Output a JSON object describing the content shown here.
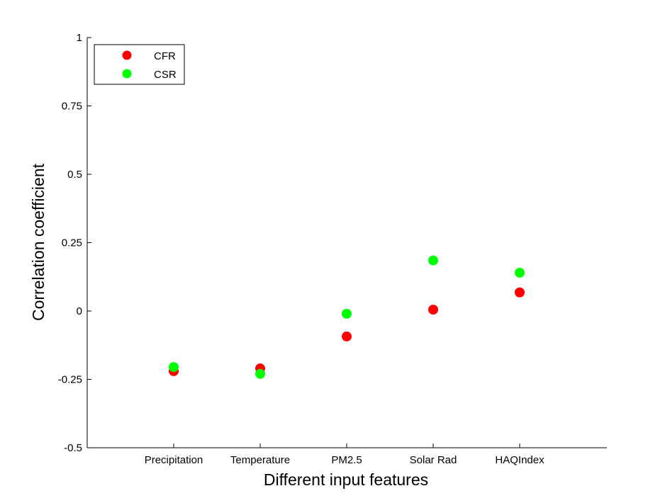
{
  "chart_data": {
    "type": "scatter",
    "categories": [
      "Precipitation",
      "Temperature",
      "PM2.5",
      "Solar Rad",
      "HAQIndex"
    ],
    "series": [
      {
        "name": "CFR",
        "color": "#ff0000",
        "values": [
          -0.22,
          -0.21,
          -0.093,
          0.005,
          0.068
        ]
      },
      {
        "name": "CSR",
        "color": "#00ff00",
        "values": [
          -0.205,
          -0.23,
          -0.01,
          0.185,
          0.14
        ]
      }
    ],
    "xlabel": "Different input features",
    "ylabel": "Correlation coefficient",
    "ylim": [
      -0.5,
      1
    ],
    "yticks": [
      "-0.5",
      "-0.25",
      "0",
      "0.25",
      "0.5",
      "0.75",
      "1"
    ],
    "grid": false,
    "legend_position": "top-left"
  }
}
